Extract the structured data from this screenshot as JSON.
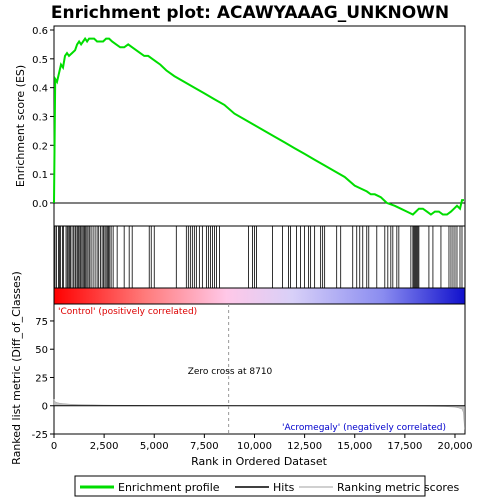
{
  "chart_data": [
    {
      "type": "line",
      "title": "Enrichment plot: ACAWYAAAG_UNKNOWN",
      "ylabel": "Enrichment score (ES)",
      "xlim": [
        0,
        20500
      ],
      "ylim": [
        -0.08,
        0.6
      ],
      "y_ticks": [
        "0.0",
        "0.1",
        "0.2",
        "0.3",
        "0.4",
        "0.5",
        "0.6"
      ],
      "grid": false,
      "series": [
        {
          "name": "Enrichment profile",
          "color": "#00dd00",
          "x": [
            0,
            60,
            150,
            250,
            350,
            450,
            550,
            650,
            750,
            900,
            1050,
            1150,
            1250,
            1350,
            1450,
            1550,
            1650,
            1750,
            1850,
            2000,
            2150,
            2300,
            2450,
            2600,
            2750,
            2900,
            3100,
            3300,
            3500,
            3700,
            3900,
            4100,
            4300,
            4500,
            4700,
            4900,
            5100,
            5300,
            5600,
            6000,
            6500,
            7000,
            7500,
            8000,
            8500,
            9000,
            9500,
            10000,
            10500,
            11000,
            11500,
            12000,
            12500,
            13000,
            13500,
            14000,
            14500,
            15000,
            15300,
            15600,
            15800,
            16000,
            16300,
            16600,
            17000,
            17300,
            17600,
            17900,
            18050,
            18200,
            18400,
            18600,
            18800,
            19000,
            19200,
            19400,
            19600,
            19800,
            19950,
            20100,
            20250,
            20350,
            20450
          ],
          "y": [
            0.0,
            0.43,
            0.42,
            0.45,
            0.48,
            0.47,
            0.51,
            0.52,
            0.51,
            0.52,
            0.53,
            0.55,
            0.56,
            0.55,
            0.56,
            0.57,
            0.56,
            0.57,
            0.57,
            0.57,
            0.56,
            0.56,
            0.56,
            0.57,
            0.57,
            0.56,
            0.55,
            0.54,
            0.54,
            0.55,
            0.54,
            0.53,
            0.52,
            0.51,
            0.51,
            0.5,
            0.49,
            0.48,
            0.46,
            0.44,
            0.42,
            0.4,
            0.38,
            0.36,
            0.34,
            0.31,
            0.29,
            0.27,
            0.25,
            0.23,
            0.21,
            0.19,
            0.17,
            0.15,
            0.13,
            0.11,
            0.09,
            0.06,
            0.05,
            0.04,
            0.03,
            0.03,
            0.02,
            0.0,
            -0.01,
            -0.02,
            -0.03,
            -0.04,
            -0.03,
            -0.02,
            -0.02,
            -0.03,
            -0.04,
            -0.03,
            -0.03,
            -0.04,
            -0.04,
            -0.03,
            -0.02,
            -0.01,
            -0.02,
            0.01,
            0.01
          ]
        }
      ]
    },
    {
      "type": "line",
      "ylabel": "Ranked list metric (Diff_of_Classes)",
      "xlabel": "Rank in Ordered Dataset",
      "xlim": [
        0,
        20500
      ],
      "ylim": [
        -25,
        90
      ],
      "x_ticks": [
        "0",
        "2,500",
        "5,000",
        "7,500",
        "10,000",
        "12,500",
        "15,000",
        "17,500",
        "20,000"
      ],
      "x_tick_values": [
        0,
        2500,
        5000,
        7500,
        10000,
        12500,
        15000,
        17500,
        20000
      ],
      "y_ticks": [
        "-25",
        "0",
        "25",
        "50",
        "75"
      ],
      "y_tick_values": [
        -25,
        0,
        25,
        50,
        75
      ],
      "zero_cross_label": "Zero cross at 8710",
      "zero_cross": 8710,
      "positive_label": "'Control' (positively correlated)",
      "negative_label": "'Acromegaly' (negatively correlated)",
      "positive_color": "#dd0000",
      "negative_color": "#0000cc",
      "series": [
        {
          "name": "Ranking metric scores",
          "color": "#c0c0c0",
          "x": [
            0,
            20,
            60,
            150,
            300,
            500,
            800,
            1200,
            1800,
            2500,
            3000,
            4000,
            5000,
            6000,
            7000,
            8000,
            8710,
            9500,
            11000,
            13000,
            15000,
            17000,
            18500,
            19500,
            20000,
            20200,
            20350,
            20420,
            20480
          ],
          "y": [
            6.0,
            4.5,
            3.5,
            2.8,
            2.2,
            1.8,
            1.4,
            1.1,
            0.8,
            0.6,
            0.5,
            0.35,
            0.25,
            0.18,
            0.12,
            0.05,
            0.0,
            -0.05,
            -0.1,
            -0.15,
            -0.2,
            -0.3,
            -0.5,
            -0.8,
            -1.2,
            -2.0,
            -3.0,
            -6.0,
            -21.0
          ]
        }
      ]
    }
  ],
  "hits": [
    50,
    120,
    220,
    280,
    330,
    420,
    480,
    600,
    660,
    710,
    780,
    820,
    900,
    980,
    1050,
    1100,
    1180,
    1230,
    1290,
    1340,
    1400,
    1460,
    1520,
    1580,
    1640,
    1700,
    1780,
    1850,
    1950,
    2050,
    2150,
    2230,
    2320,
    2400,
    2470,
    2540,
    2600,
    2660,
    2720,
    2780,
    2850,
    2950,
    3150,
    3500,
    3750,
    3900,
    4750,
    4850,
    5000,
    6100,
    6600,
    6700,
    6800,
    6900,
    7000,
    7100,
    7250,
    7400,
    7600,
    7700,
    7800,
    7900,
    8000,
    8100,
    8250,
    9700,
    9900,
    10000,
    10100,
    10900,
    11400,
    11700,
    11800,
    12100,
    12300,
    12500,
    12700,
    12800,
    13000,
    13300,
    13400,
    13500,
    14100,
    14300,
    14900,
    15100,
    15250,
    15400,
    15600,
    15700,
    16100,
    16500,
    16650,
    16800,
    16900,
    17100,
    17200,
    17800,
    17900,
    17950,
    18000,
    18050,
    18100,
    18150,
    18200,
    18700,
    18900,
    19300,
    19700,
    19800,
    19900,
    20000,
    20100,
    20250,
    20350
  ],
  "legend": {
    "enrichment_profile": "Enrichment profile",
    "hits": "Hits",
    "ranking_metric_scores": "Ranking metric scores"
  }
}
